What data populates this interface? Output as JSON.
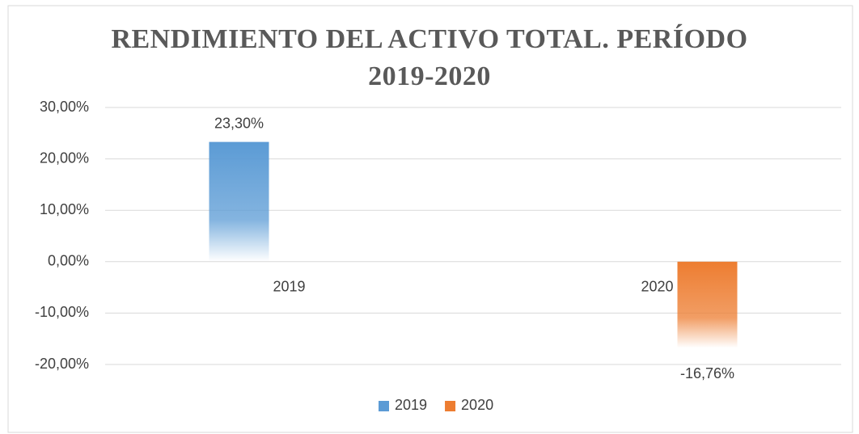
{
  "chart_data": {
    "type": "bar",
    "title": "RENDIMIENTO DEL ACTIVO TOTAL. PERÍODO 2019-2020",
    "categories": [
      "2019",
      "2020"
    ],
    "series": [
      {
        "name": "2019",
        "color": "#5b9bd5",
        "values": [
          23.3,
          null
        ],
        "value_labels": [
          "23,30%",
          null
        ]
      },
      {
        "name": "2020",
        "color": "#ed7d31",
        "values": [
          null,
          -16.76
        ],
        "value_labels": [
          null,
          "-16,76%"
        ]
      }
    ],
    "ylim": [
      -20,
      30
    ],
    "yticks": [
      {
        "value": -20,
        "label": "-20,00%"
      },
      {
        "value": -10,
        "label": "-10,00%"
      },
      {
        "value": 0,
        "label": "0,00%"
      },
      {
        "value": 10,
        "label": "10,00%"
      },
      {
        "value": 20,
        "label": "20,00%"
      },
      {
        "value": 30,
        "label": "30,00%"
      }
    ],
    "grid": true,
    "legend": "bottom"
  }
}
